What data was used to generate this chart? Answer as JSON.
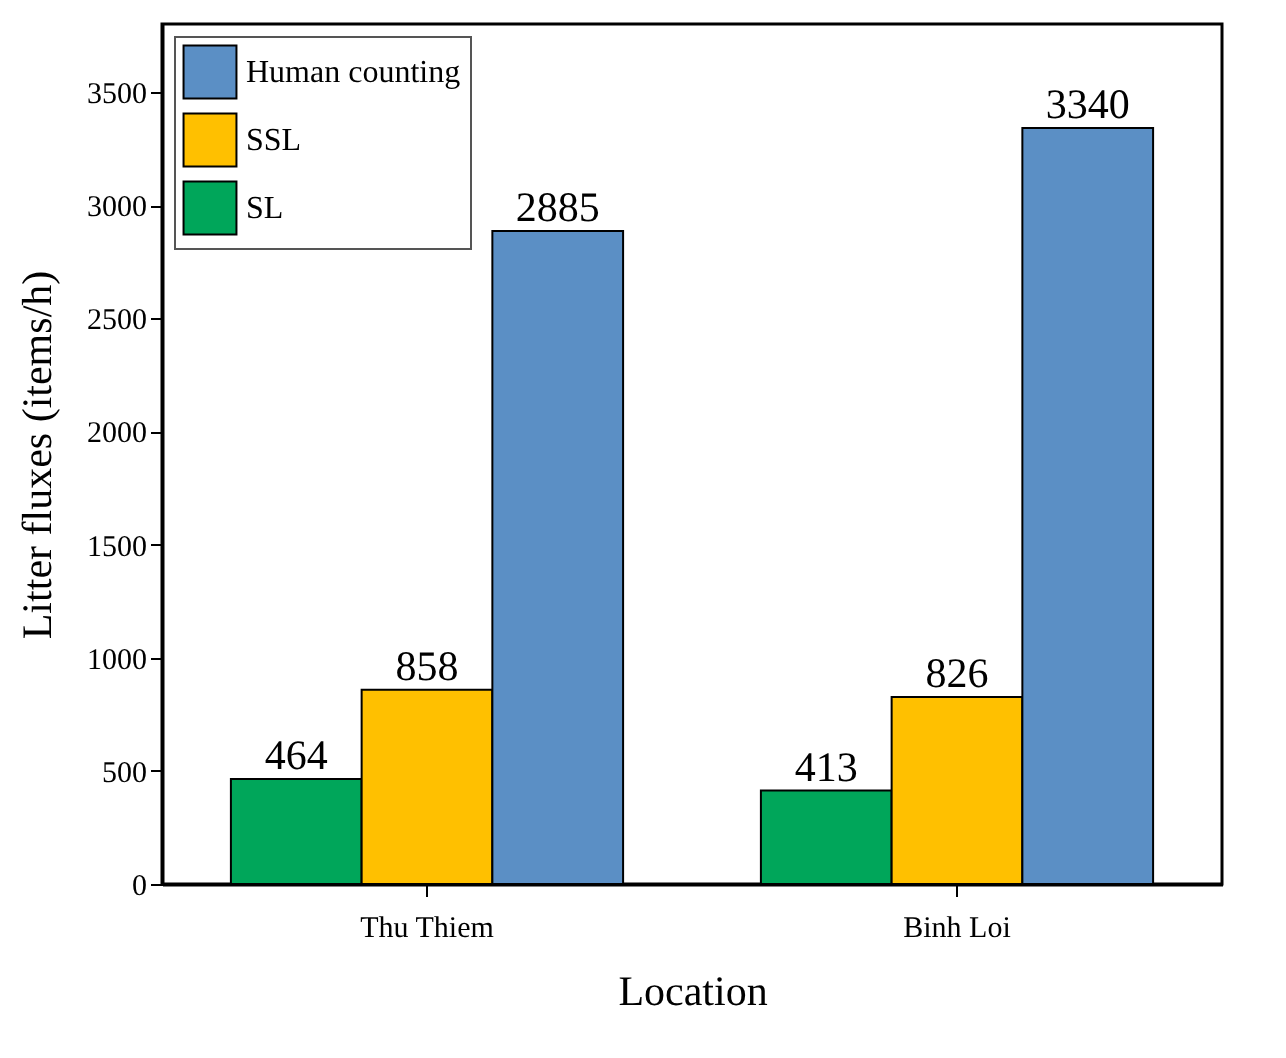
{
  "chart_data": {
    "type": "bar",
    "xlabel": "Location",
    "ylabel": "Litter fluxes (items/h)",
    "categories": [
      "Thu Thiem",
      "Binh Loi"
    ],
    "series": [
      {
        "name": "SL",
        "color": "#00a65a",
        "values": [
          464,
          413
        ]
      },
      {
        "name": "SSL",
        "color": "#ffc000",
        "values": [
          858,
          826
        ]
      },
      {
        "name": "Human counting",
        "color": "#5b8fc5",
        "values": [
          2885,
          3340
        ]
      }
    ],
    "ylim": [
      0,
      3800
    ],
    "yticks": [
      0,
      500,
      1000,
      1500,
      2000,
      2500,
      3000,
      3500
    ],
    "data_labels": true,
    "legend": "top left",
    "grid": false
  }
}
